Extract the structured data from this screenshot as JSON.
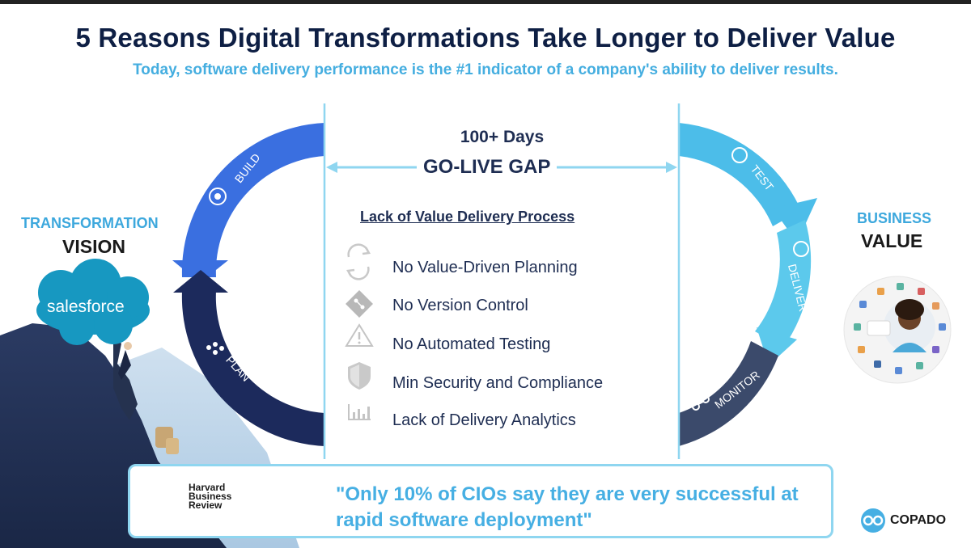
{
  "header": {
    "title": "5 Reasons Digital Transformations Take Longer to Deliver Value",
    "subtitle": "Today, software delivery performance is the #1 indicator of a company's ability to deliver results."
  },
  "left": {
    "transformation": "TRANSFORMATION",
    "vision": "VISION",
    "salesforce": "salesforce"
  },
  "right": {
    "business": "BUSINESS",
    "value": "VALUE"
  },
  "cycle": {
    "build": "BUILD",
    "plan": "PLAN",
    "test": "TEST",
    "deliver": "DELIVER",
    "monitor": "MONITOR"
  },
  "gap": {
    "days": "100+ Days",
    "label": "GO-LIVE GAP"
  },
  "process": {
    "heading": "Lack of Value Delivery Process",
    "items": [
      {
        "label": "No Value-Driven Planning",
        "icon": "refresh-icon"
      },
      {
        "label": "No Version Control",
        "icon": "git-icon"
      },
      {
        "label": "No Automated Testing",
        "icon": "warning-icon"
      },
      {
        "label": "Min Security and Compliance",
        "icon": "shield-icon"
      },
      {
        "label": "Lack of Delivery Analytics",
        "icon": "analytics-icon"
      }
    ]
  },
  "quote": {
    "source_line1": "Harvard",
    "source_line2": "Business",
    "source_line3": "Review",
    "text": "\"Only 10% of CIOs say they are very successful at rapid software deployment\""
  },
  "brand": {
    "name": "COPADO"
  },
  "colors": {
    "navy": "#1c2a5c",
    "blue": "#3a6fe0",
    "light_blue": "#45b8e8",
    "slate": "#3b4a6b",
    "accent": "#46afe3"
  }
}
